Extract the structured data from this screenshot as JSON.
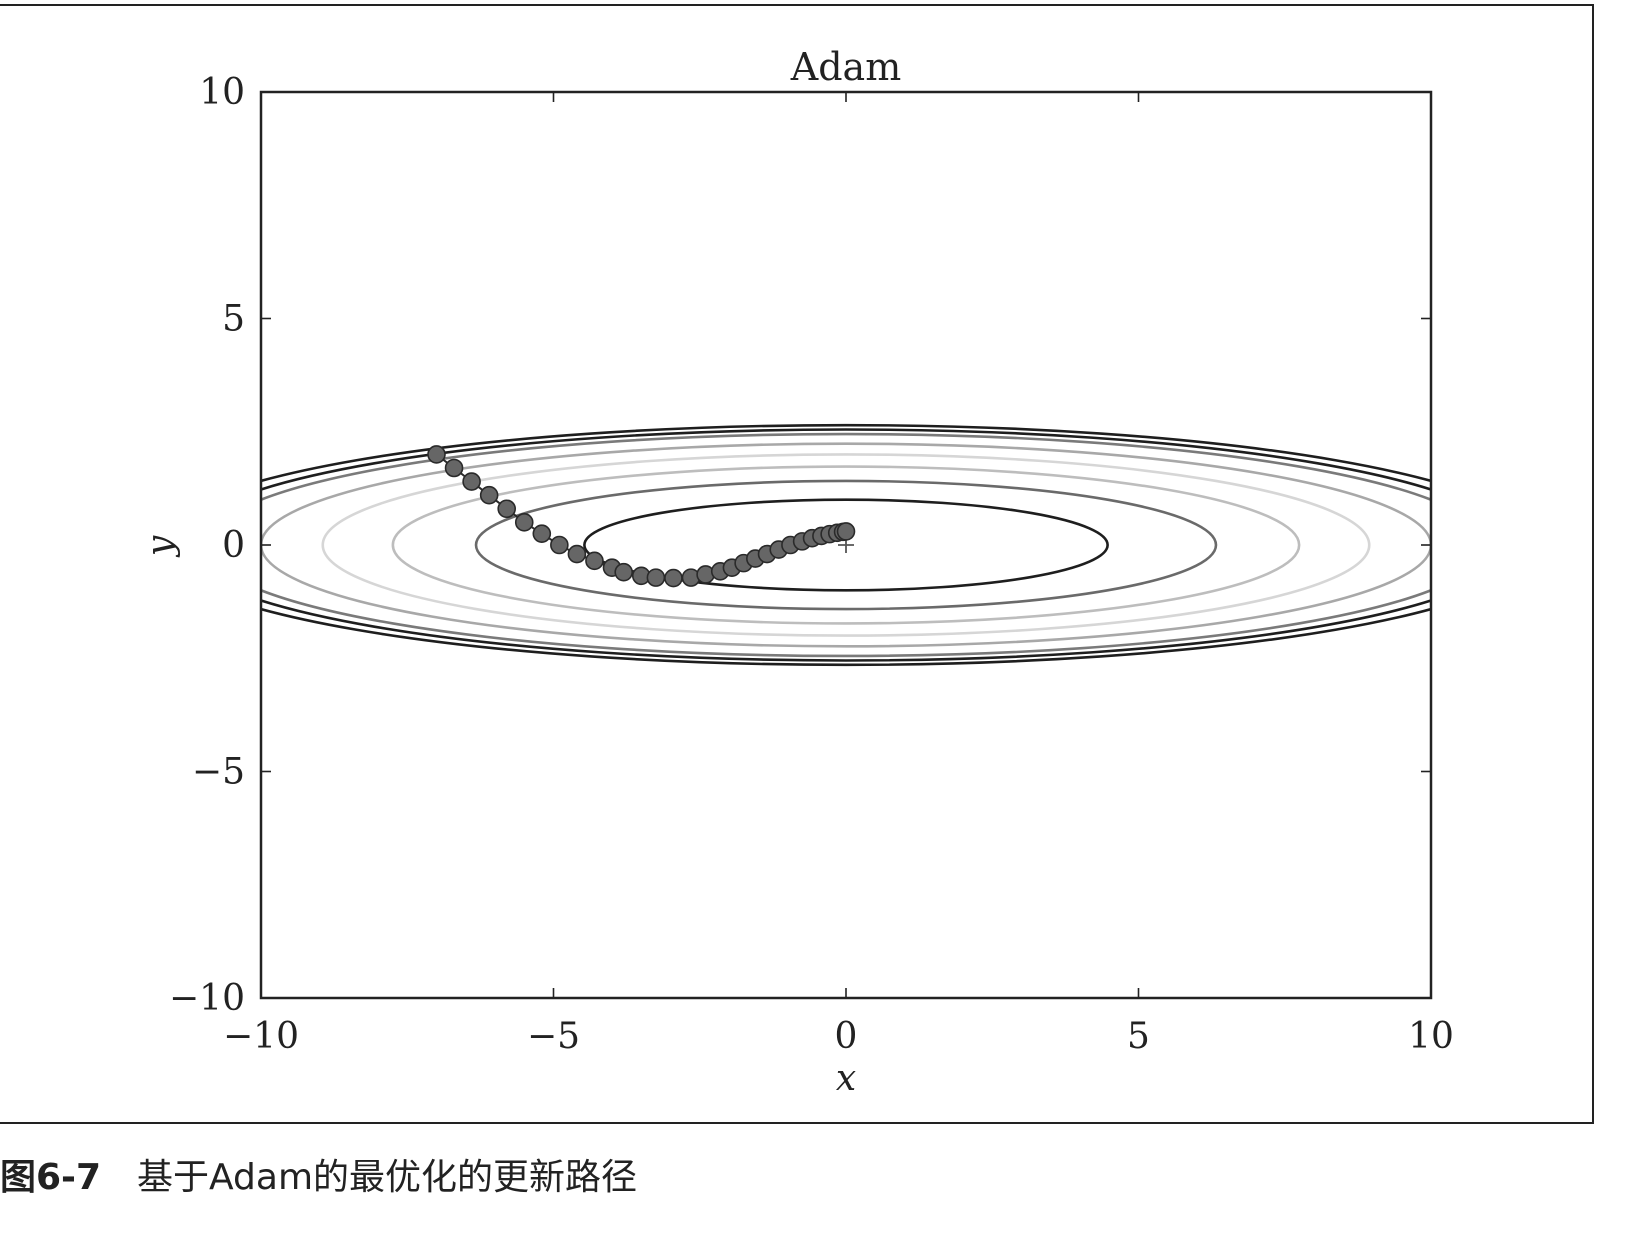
{
  "chart_data": {
    "type": "contour",
    "title": "Adam",
    "xlabel": "x",
    "ylabel": "y",
    "xlim": [
      -10,
      10
    ],
    "ylim": [
      -10,
      10
    ],
    "xticks": [
      -10,
      -5,
      0,
      5,
      10
    ],
    "yticks": [
      -10,
      -5,
      0,
      5,
      10
    ],
    "xtick_labels": [
      "−10",
      "−5",
      "0",
      "5",
      "10"
    ],
    "ytick_labels": [
      "10",
      "5",
      "0",
      "−5",
      "−10"
    ],
    "function": "f(x, y) = x^2 / 20 + y^2",
    "minimum_marker": {
      "x": 0,
      "y": 0,
      "symbol": "+"
    },
    "contours": [
      {
        "level": 1,
        "color": "#1e1e1e"
      },
      {
        "level": 2,
        "color": "#6a6a6a"
      },
      {
        "level": 3,
        "color": "#bdbdbd"
      },
      {
        "level": 4,
        "color": "#d6d6d6"
      },
      {
        "level": 5,
        "color": "#a8a8a8"
      },
      {
        "level": 6,
        "color": "#7a7a7a"
      },
      {
        "level": 6.5,
        "color": "#1e1e1e"
      },
      {
        "level": 7,
        "color": "#1e1e1e"
      }
    ],
    "path": {
      "marker_color": "#666666",
      "edge_color": "#2a2a2a",
      "x": [
        -7.0,
        -6.7,
        -6.4,
        -6.1,
        -5.8,
        -5.5,
        -5.2,
        -4.9,
        -4.6,
        -4.3,
        -4.0,
        -3.8,
        -3.5,
        -3.25,
        -2.95,
        -2.65,
        -2.4,
        -2.15,
        -1.95,
        -1.75,
        -1.55,
        -1.35,
        -1.15,
        -0.95,
        -0.75,
        -0.58,
        -0.42,
        -0.28,
        -0.15,
        -0.05,
        0.0
      ],
      "y": [
        2.0,
        1.7,
        1.4,
        1.1,
        0.8,
        0.5,
        0.25,
        0.0,
        -0.2,
        -0.35,
        -0.5,
        -0.6,
        -0.68,
        -0.72,
        -0.73,
        -0.72,
        -0.65,
        -0.58,
        -0.5,
        -0.4,
        -0.3,
        -0.2,
        -0.1,
        0.0,
        0.08,
        0.15,
        0.2,
        0.24,
        0.27,
        0.29,
        0.3
      ]
    }
  },
  "caption": {
    "figure_label": "图6-7",
    "text": "基于Adam的最优化的更新路径"
  }
}
